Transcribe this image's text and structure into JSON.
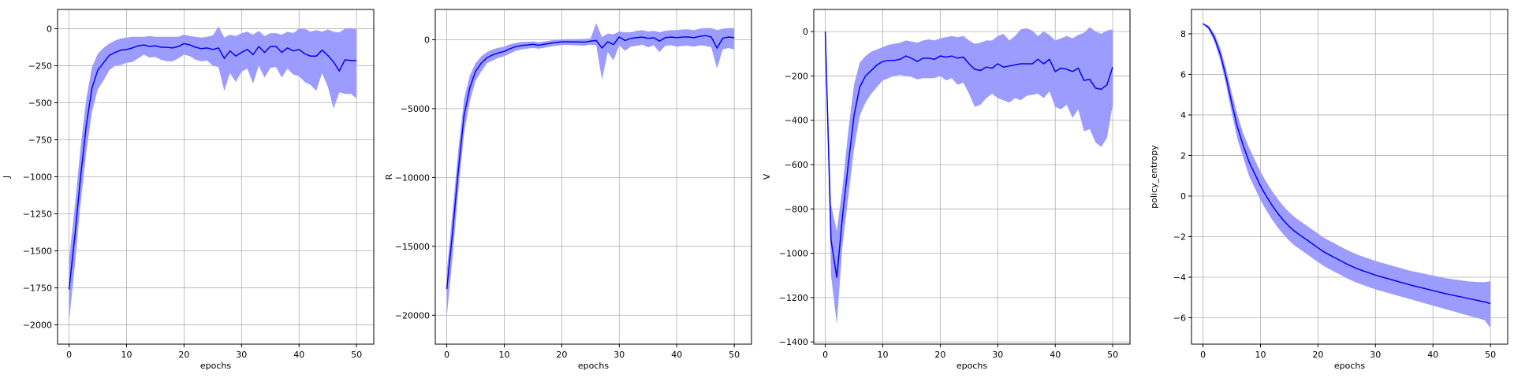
{
  "chart_data": [
    {
      "type": "line",
      "xlabel": "epochs",
      "ylabel": "J",
      "xlim": [
        -2,
        53
      ],
      "ylim": [
        -2130,
        130
      ],
      "xticks": [
        0,
        10,
        20,
        30,
        40,
        50
      ],
      "yticks": [
        0,
        -250,
        -500,
        -750,
        -1000,
        -1250,
        -1500,
        -1750,
        -2000
      ],
      "ytick_labels": [
        "0",
        "−250",
        "−500",
        "−750",
        "−1000",
        "−1250",
        "−1500",
        "−1750",
        "−2000"
      ],
      "grid": true,
      "colors": {
        "line": "#0000ff",
        "band": "#9c9cff"
      },
      "series": [
        {
          "x": [
            0,
            1,
            2,
            3,
            4,
            5,
            6,
            7,
            8,
            9,
            10,
            11,
            12,
            13,
            14,
            15,
            16,
            17,
            18,
            19,
            20,
            21,
            22,
            23,
            24,
            25,
            26,
            27,
            28,
            29,
            30,
            31,
            32,
            33,
            34,
            35,
            36,
            37,
            38,
            39,
            40,
            41,
            42,
            43,
            44,
            45,
            46,
            47,
            48,
            49,
            50
          ],
          "mean": [
            -1760,
            -1400,
            -1000,
            -650,
            -400,
            -280,
            -230,
            -180,
            -160,
            -145,
            -140,
            -130,
            -115,
            -110,
            -120,
            -115,
            -125,
            -125,
            -130,
            -120,
            -100,
            -110,
            -125,
            -135,
            -130,
            -140,
            -130,
            -200,
            -150,
            -185,
            -160,
            -140,
            -175,
            -120,
            -160,
            -120,
            -120,
            -160,
            -130,
            -150,
            -140,
            -170,
            -185,
            -185,
            -145,
            -180,
            -225,
            -285,
            -210,
            -215,
            -215
          ],
          "upper": [
            -1560,
            -1200,
            -800,
            -470,
            -260,
            -170,
            -130,
            -100,
            -80,
            -65,
            -60,
            -55,
            -55,
            -55,
            -50,
            -55,
            -55,
            -55,
            -55,
            -55,
            -40,
            -50,
            -55,
            -60,
            -55,
            -45,
            15,
            -60,
            -40,
            -50,
            -30,
            -20,
            -40,
            -15,
            -50,
            -30,
            -30,
            -40,
            -20,
            -30,
            0,
            0,
            -20,
            -10,
            -20,
            -5,
            -20,
            -25,
            0,
            5,
            -5
          ],
          "lower": [
            -1980,
            -1600,
            -1180,
            -830,
            -560,
            -410,
            -350,
            -280,
            -250,
            -245,
            -230,
            -225,
            -200,
            -175,
            -195,
            -190,
            -210,
            -220,
            -220,
            -200,
            -175,
            -185,
            -210,
            -220,
            -215,
            -250,
            -260,
            -420,
            -300,
            -360,
            -290,
            -270,
            -370,
            -250,
            -330,
            -265,
            -260,
            -330,
            -270,
            -310,
            -320,
            -360,
            -380,
            -420,
            -300,
            -390,
            -540,
            -430,
            -440,
            -440,
            -470
          ]
        }
      ]
    },
    {
      "type": "line",
      "xlabel": "epochs",
      "ylabel": "R",
      "xlim": [
        -2,
        53
      ],
      "ylim": [
        -22100,
        2200
      ],
      "xticks": [
        0,
        10,
        20,
        30,
        40,
        50
      ],
      "yticks": [
        0,
        -5000,
        -10000,
        -15000,
        -20000
      ],
      "ytick_labels": [
        "0",
        "−5000",
        "−10000",
        "−15000",
        "−20000"
      ],
      "grid": true,
      "colors": {
        "line": "#0000ff",
        "band": "#9c9cff"
      },
      "series": [
        {
          "x": [
            0,
            1,
            2,
            3,
            4,
            5,
            6,
            7,
            8,
            9,
            10,
            11,
            12,
            13,
            14,
            15,
            16,
            17,
            18,
            19,
            20,
            21,
            22,
            23,
            24,
            25,
            26,
            27,
            28,
            29,
            30,
            31,
            32,
            33,
            34,
            35,
            36,
            37,
            38,
            39,
            40,
            41,
            42,
            43,
            44,
            45,
            46,
            47,
            48,
            49,
            50
          ],
          "mean": [
            -18100,
            -14000,
            -9500,
            -5500,
            -3500,
            -2300,
            -1700,
            -1300,
            -1100,
            -950,
            -850,
            -650,
            -500,
            -420,
            -380,
            -330,
            -400,
            -320,
            -260,
            -200,
            -150,
            -150,
            -160,
            -160,
            -170,
            -100,
            -50,
            -600,
            -150,
            -350,
            200,
            -50,
            100,
            150,
            200,
            100,
            150,
            -100,
            150,
            200,
            150,
            200,
            200,
            150,
            250,
            300,
            200,
            -600,
            100,
            200,
            150
          ],
          "upper": [
            -16800,
            -12500,
            -8000,
            -4300,
            -2600,
            -1700,
            -1200,
            -900,
            -700,
            -580,
            -500,
            -330,
            -230,
            -160,
            -150,
            -120,
            -180,
            -120,
            -60,
            0,
            30,
            40,
            50,
            50,
            60,
            100,
            1200,
            200,
            450,
            400,
            600,
            550,
            550,
            650,
            700,
            600,
            650,
            550,
            650,
            700,
            700,
            750,
            750,
            700,
            800,
            850,
            850,
            700,
            800,
            850,
            850
          ],
          "lower": [
            -20100,
            -15800,
            -11000,
            -6800,
            -4500,
            -3000,
            -2300,
            -1700,
            -1500,
            -1300,
            -1200,
            -1000,
            -800,
            -700,
            -650,
            -600,
            -650,
            -580,
            -500,
            -440,
            -380,
            -380,
            -400,
            -420,
            -430,
            -350,
            -400,
            -2900,
            -900,
            -1500,
            -400,
            -800,
            -500,
            -450,
            -350,
            -550,
            -400,
            -900,
            -450,
            -400,
            -500,
            -450,
            -450,
            -500,
            -400,
            -450,
            -550,
            -2100,
            -700,
            -600,
            -700
          ]
        }
      ]
    },
    {
      "type": "line",
      "xlabel": "epochs",
      "ylabel": "V",
      "xlim": [
        -2,
        53
      ],
      "ylim": [
        -1410,
        100
      ],
      "xticks": [
        0,
        10,
        20,
        30,
        40,
        50
      ],
      "yticks": [
        0,
        -200,
        -400,
        -600,
        -800,
        -1000,
        -1200,
        -1400
      ],
      "ytick_labels": [
        "0",
        "−200",
        "−400",
        "−600",
        "−800",
        "−1000",
        "−1200",
        "−1400"
      ],
      "grid": true,
      "colors": {
        "line": "#0000ff",
        "band": "#9c9cff"
      },
      "series": [
        {
          "x": [
            0,
            1,
            2,
            3,
            4,
            5,
            6,
            7,
            8,
            9,
            10,
            11,
            12,
            13,
            14,
            15,
            16,
            17,
            18,
            19,
            20,
            21,
            22,
            23,
            24,
            25,
            26,
            27,
            28,
            29,
            30,
            31,
            32,
            33,
            34,
            35,
            36,
            37,
            38,
            39,
            40,
            41,
            42,
            43,
            44,
            45,
            46,
            47,
            48,
            49,
            50
          ],
          "mean": [
            0,
            -940,
            -1110,
            -830,
            -600,
            -380,
            -250,
            -200,
            -175,
            -150,
            -135,
            -130,
            -130,
            -125,
            -110,
            -120,
            -135,
            -120,
            -120,
            -125,
            -110,
            -115,
            -110,
            -120,
            -115,
            -145,
            -170,
            -175,
            -160,
            -165,
            -145,
            -160,
            -155,
            -150,
            -145,
            -145,
            -145,
            -125,
            -145,
            -125,
            -180,
            -165,
            -170,
            -180,
            -165,
            -220,
            -215,
            -255,
            -260,
            -240,
            -160
          ],
          "upper": [
            0,
            -780,
            -900,
            -700,
            -450,
            -240,
            -140,
            -110,
            -90,
            -80,
            -70,
            -60,
            -55,
            -50,
            -40,
            -45,
            -50,
            -40,
            -35,
            -40,
            -30,
            -25,
            -20,
            -25,
            -20,
            -40,
            -55,
            -50,
            -40,
            -40,
            -20,
            -10,
            -40,
            -20,
            10,
            15,
            5,
            -20,
            0,
            -15,
            -40,
            -30,
            -20,
            -30,
            -15,
            -5,
            20,
            0,
            -10,
            5,
            10
          ],
          "lower": [
            0,
            -1100,
            -1320,
            -960,
            -750,
            -530,
            -380,
            -320,
            -280,
            -250,
            -220,
            -210,
            -200,
            -195,
            -200,
            -205,
            -215,
            -210,
            -210,
            -210,
            -200,
            -220,
            -210,
            -240,
            -230,
            -280,
            -340,
            -330,
            -300,
            -280,
            -300,
            -310,
            -320,
            -300,
            -310,
            -290,
            -285,
            -280,
            -300,
            -270,
            -340,
            -350,
            -330,
            -390,
            -350,
            -450,
            -440,
            -500,
            -520,
            -480,
            -330
          ]
        }
      ]
    },
    {
      "type": "line",
      "xlabel": "epochs",
      "ylabel": "policy_entropy",
      "xlim": [
        -2,
        53
      ],
      "ylim": [
        -7.3,
        9.2
      ],
      "xticks": [
        0,
        10,
        20,
        30,
        40,
        50
      ],
      "yticks": [
        8,
        6,
        4,
        2,
        0,
        -2,
        -4,
        -6
      ],
      "ytick_labels": [
        "8",
        "6",
        "4",
        "2",
        "0",
        "−2",
        "−4",
        "−6"
      ],
      "grid": true,
      "colors": {
        "line": "#0000ff",
        "band": "#9c9cff"
      },
      "series": [
        {
          "x": [
            0,
            1,
            2,
            3,
            4,
            5,
            6,
            7,
            8,
            9,
            10,
            11,
            12,
            13,
            14,
            15,
            16,
            17,
            18,
            19,
            20,
            21,
            22,
            23,
            24,
            25,
            26,
            27,
            28,
            29,
            30,
            31,
            32,
            33,
            34,
            35,
            36,
            37,
            38,
            39,
            40,
            41,
            42,
            43,
            44,
            45,
            46,
            47,
            48,
            49,
            50
          ],
          "mean": [
            8.5,
            8.3,
            7.8,
            7.0,
            5.9,
            4.6,
            3.4,
            2.5,
            1.7,
            1.1,
            0.5,
            0.0,
            -0.45,
            -0.85,
            -1.2,
            -1.5,
            -1.75,
            -1.95,
            -2.15,
            -2.35,
            -2.55,
            -2.75,
            -2.9,
            -3.05,
            -3.2,
            -3.35,
            -3.48,
            -3.6,
            -3.7,
            -3.8,
            -3.9,
            -3.98,
            -4.06,
            -4.14,
            -4.22,
            -4.3,
            -4.38,
            -4.45,
            -4.52,
            -4.59,
            -4.66,
            -4.73,
            -4.8,
            -4.86,
            -4.92,
            -4.98,
            -5.04,
            -5.1,
            -5.16,
            -5.22,
            -5.3
          ],
          "upper": [
            8.5,
            8.4,
            8.0,
            7.3,
            6.3,
            5.1,
            4.0,
            3.1,
            2.4,
            1.8,
            1.2,
            0.7,
            0.25,
            -0.15,
            -0.5,
            -0.8,
            -1.05,
            -1.25,
            -1.45,
            -1.65,
            -1.85,
            -2.05,
            -2.2,
            -2.35,
            -2.5,
            -2.65,
            -2.78,
            -2.9,
            -3.0,
            -3.1,
            -3.2,
            -3.28,
            -3.36,
            -3.44,
            -3.52,
            -3.6,
            -3.68,
            -3.74,
            -3.8,
            -3.86,
            -3.92,
            -3.98,
            -4.04,
            -4.08,
            -4.12,
            -4.16,
            -4.2,
            -4.22,
            -4.24,
            -4.24,
            -4.2
          ],
          "lower": [
            8.5,
            8.2,
            7.6,
            6.7,
            5.5,
            4.1,
            2.8,
            1.9,
            1.0,
            0.4,
            -0.2,
            -0.7,
            -1.15,
            -1.55,
            -1.9,
            -2.2,
            -2.45,
            -2.65,
            -2.85,
            -3.05,
            -3.25,
            -3.45,
            -3.6,
            -3.75,
            -3.9,
            -4.05,
            -4.18,
            -4.3,
            -4.4,
            -4.5,
            -4.6,
            -4.68,
            -4.76,
            -4.84,
            -4.92,
            -5.0,
            -5.08,
            -5.16,
            -5.24,
            -5.32,
            -5.4,
            -5.48,
            -5.56,
            -5.64,
            -5.72,
            -5.8,
            -5.88,
            -5.96,
            -6.04,
            -6.12,
            -6.5
          ]
        }
      ]
    }
  ]
}
